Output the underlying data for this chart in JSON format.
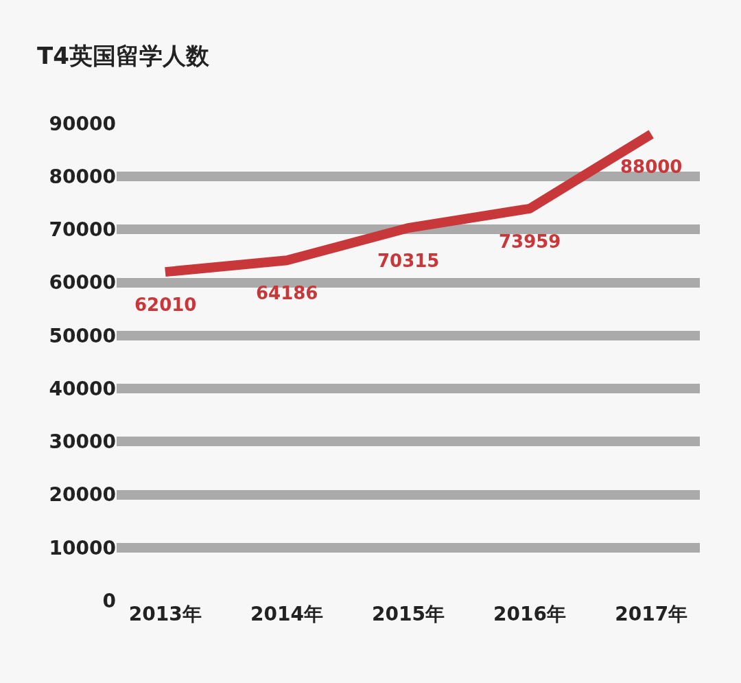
{
  "chart_data": {
    "type": "line",
    "title": "T4英国留学人数",
    "categories": [
      "2013年",
      "2014年",
      "2015年",
      "2016年",
      "2017年"
    ],
    "series": [
      {
        "color": "#c8383a",
        "values": [
          62010,
          64186,
          70315,
          73959,
          88000
        ]
      }
    ],
    "ylim": [
      0,
      90000
    ],
    "yticks": [
      0,
      10000,
      20000,
      30000,
      40000,
      50000,
      60000,
      70000,
      80000,
      90000
    ],
    "grid": "y",
    "data_labels": true,
    "marker": "none",
    "line_style": "solid"
  }
}
